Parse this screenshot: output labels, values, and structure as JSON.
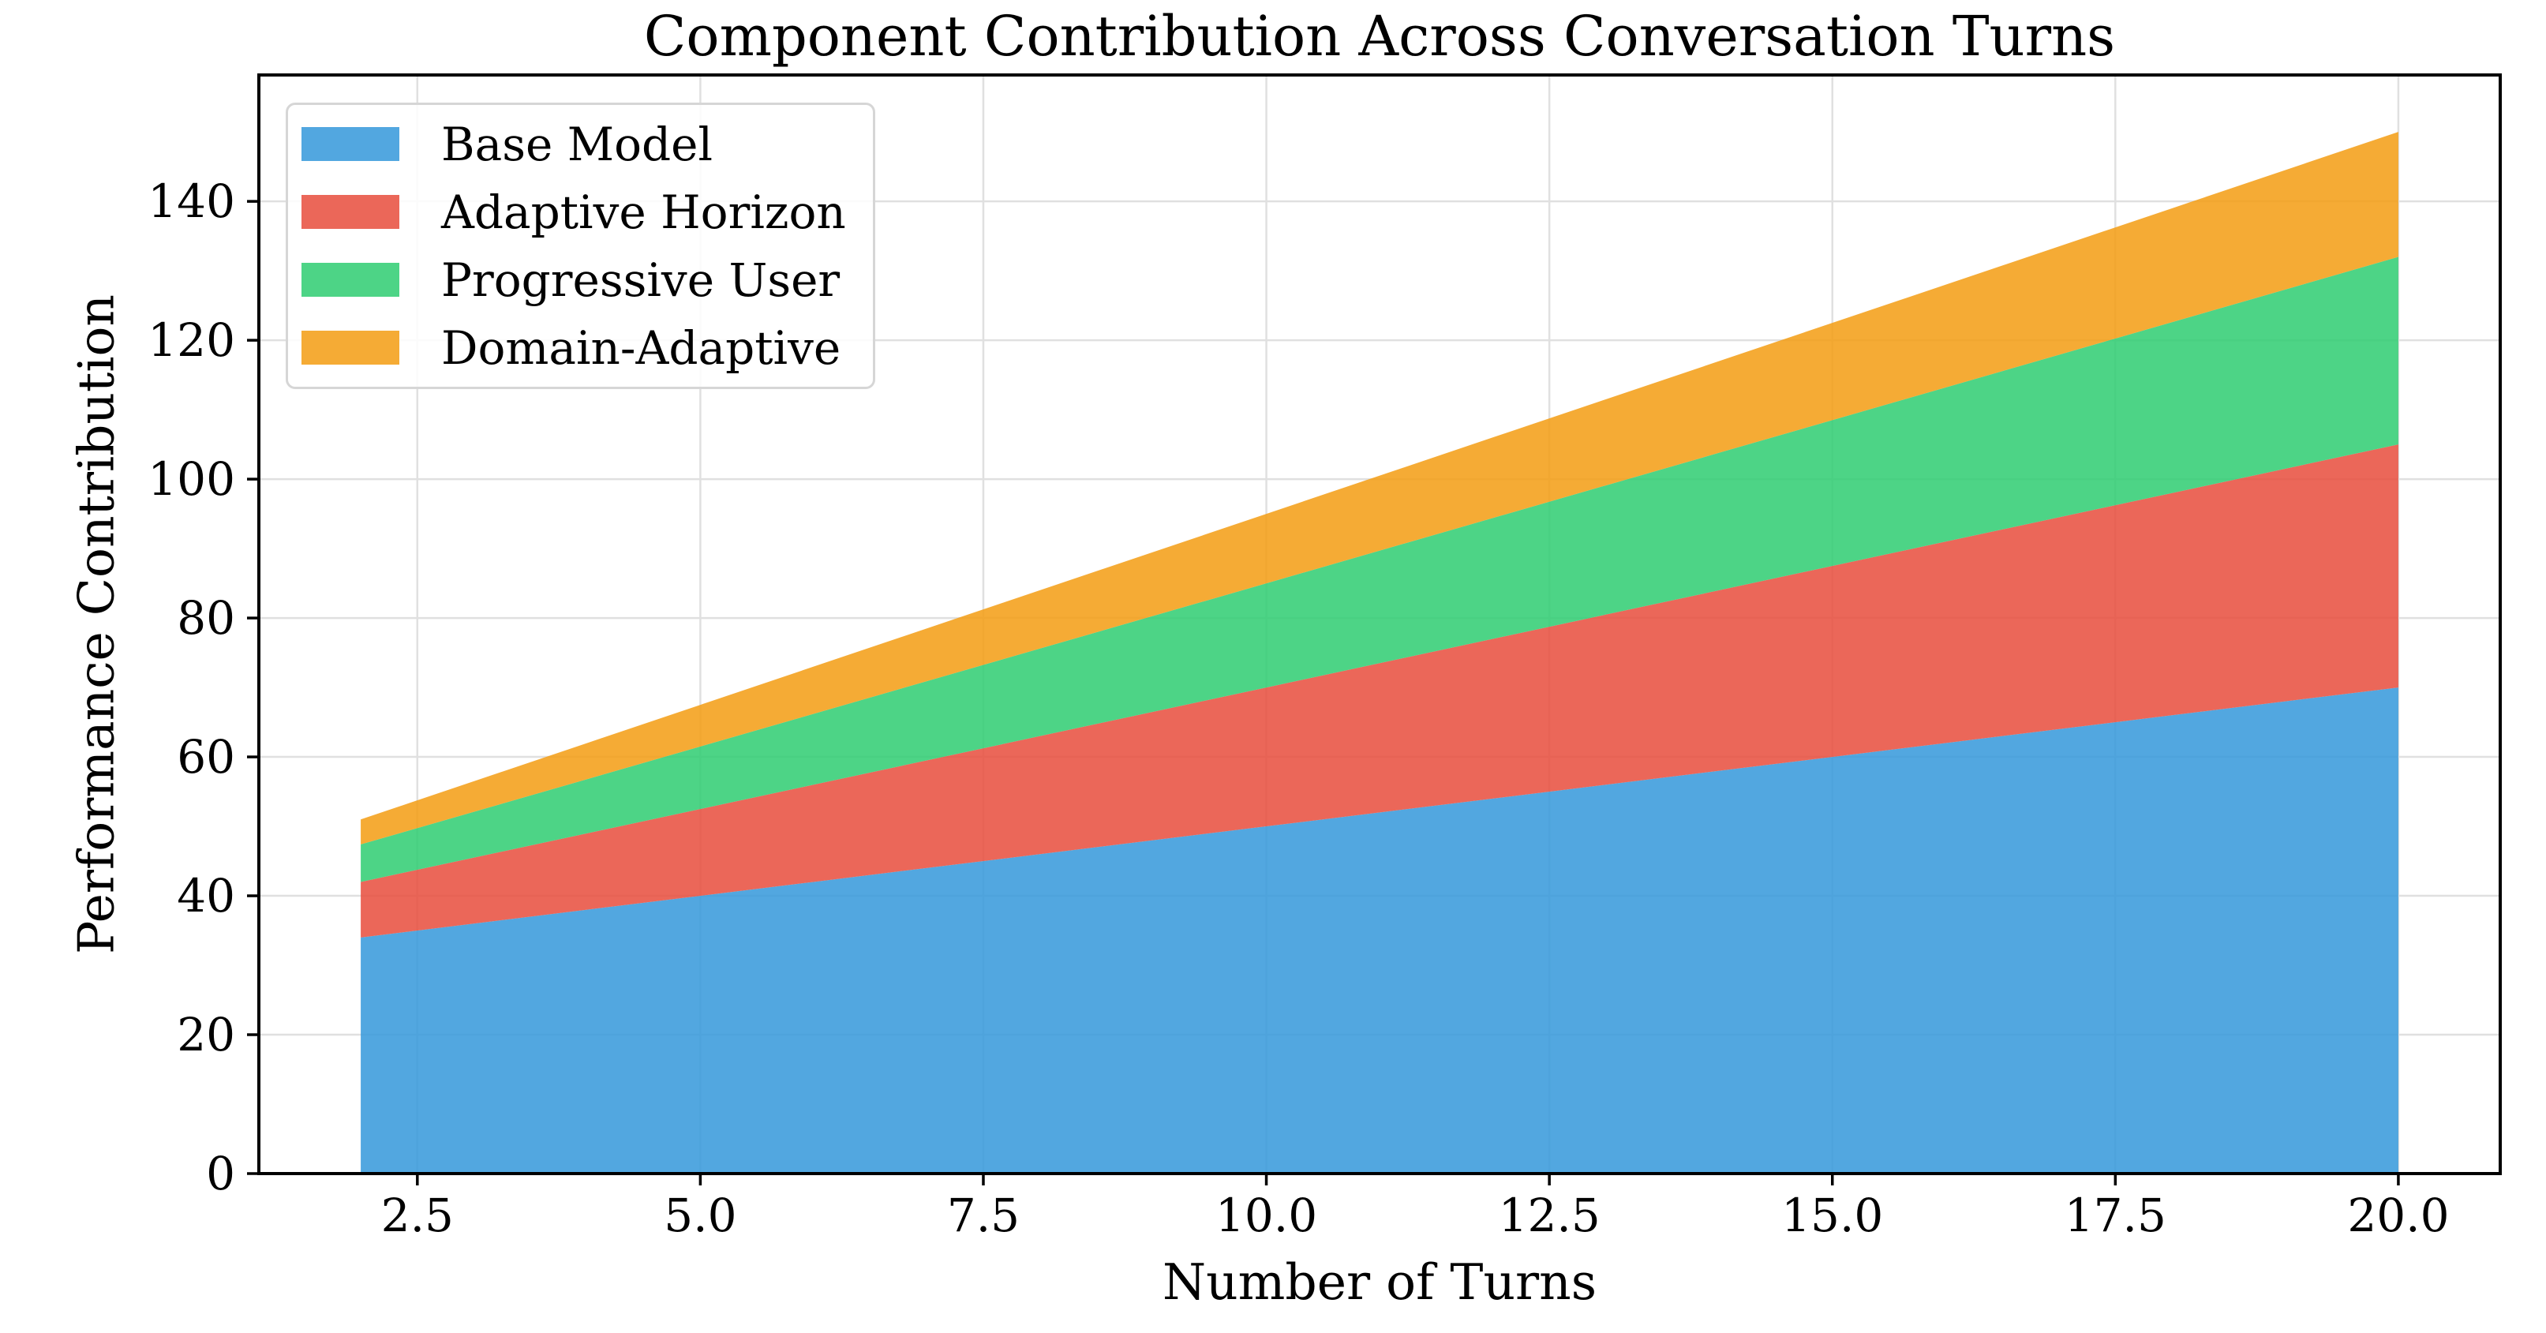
{
  "chart_data": {
    "type": "area",
    "stacked": true,
    "title": "Component Contribution Across Conversation Turns",
    "xlabel": "Number of Turns",
    "ylabel": "Performance Contribution",
    "x": [
      2,
      4,
      6,
      8,
      10,
      12,
      14,
      16,
      18,
      20
    ],
    "series": [
      {
        "name": "Base Model",
        "color": "#3498db",
        "values": [
          34,
          38,
          42,
          46,
          50,
          54,
          58,
          62,
          66,
          70
        ]
      },
      {
        "name": "Adaptive Horizon",
        "color": "#e74c3c",
        "values": [
          8,
          11,
          14,
          17,
          20,
          23,
          26,
          29,
          32,
          35
        ]
      },
      {
        "name": "Progressive User",
        "color": "#2ecc71",
        "values": [
          5.4,
          7.8,
          10.2,
          12.6,
          15,
          17.4,
          19.8,
          22.2,
          24.6,
          27
        ]
      },
      {
        "name": "Domain-Adaptive",
        "color": "#f39c12",
        "values": [
          3.6,
          5.2,
          6.8,
          8.4,
          10,
          11.6,
          13.2,
          14.8,
          16.4,
          18
        ]
      }
    ],
    "stacked_totals": [
      51,
      62,
      73,
      84,
      95,
      106,
      117,
      128,
      139,
      150
    ],
    "fill_alpha": 0.85,
    "xlim": [
      1.1,
      20.9
    ],
    "ylim": [
      0,
      158.2
    ],
    "xticks": [
      2.5,
      5.0,
      7.5,
      10.0,
      12.5,
      15.0,
      17.5,
      20.0
    ],
    "xtick_labels": [
      "2.5",
      "5.0",
      "7.5",
      "10.0",
      "12.5",
      "15.0",
      "17.5",
      "20.0"
    ],
    "yticks": [
      0,
      20,
      40,
      60,
      80,
      100,
      120,
      140
    ],
    "ytick_labels": [
      "0",
      "20",
      "40",
      "60",
      "80",
      "100",
      "120",
      "140"
    ],
    "grid": true,
    "grid_color": "#e0e0e0",
    "axis_color": "#000000",
    "background": "#ffffff",
    "legend": {
      "position": "upper left",
      "border_color": "#d6d6d6"
    }
  }
}
